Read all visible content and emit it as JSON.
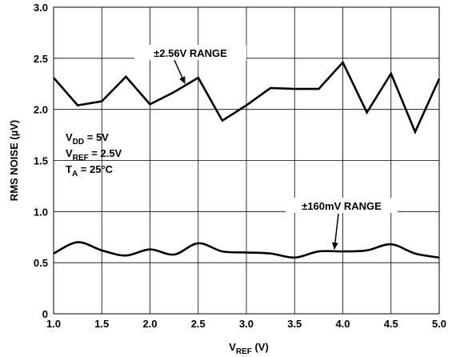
{
  "chart_data": {
    "type": "line",
    "xlabel": "V",
    "xlabel_sub": "REF",
    "xlabel_unit": " (V)",
    "ylabel": "RMS NOISE (µV)",
    "xlim": [
      1.0,
      5.0
    ],
    "ylim": [
      0,
      3.0
    ],
    "grid": true,
    "x_ticks": [
      "1.0",
      "1.5",
      "2.0",
      "2.5",
      "3.0",
      "3.5",
      "4.0",
      "4.5",
      "5.0"
    ],
    "y_ticks": [
      "0",
      "0.5",
      "1.0",
      "1.5",
      "2.0",
      "2.5",
      "3.0"
    ],
    "series": [
      {
        "name": "±2.56V RANGE",
        "smooth": false,
        "x": [
          1.0,
          1.25,
          1.5,
          1.75,
          2.0,
          2.25,
          2.5,
          2.75,
          3.0,
          3.25,
          3.5,
          3.75,
          4.0,
          4.25,
          4.5,
          4.75,
          5.0
        ],
        "y": [
          2.31,
          2.04,
          2.08,
          2.32,
          2.05,
          2.17,
          2.31,
          1.89,
          2.04,
          2.21,
          2.2,
          2.2,
          2.46,
          1.97,
          2.35,
          1.78,
          2.3
        ]
      },
      {
        "name": "±160mV RANGE",
        "smooth": true,
        "x": [
          1.0,
          1.25,
          1.5,
          1.75,
          2.0,
          2.25,
          2.5,
          2.75,
          3.0,
          3.25,
          3.5,
          3.75,
          4.0,
          4.25,
          4.5,
          4.75,
          5.0
        ],
        "y": [
          0.59,
          0.7,
          0.62,
          0.57,
          0.63,
          0.58,
          0.69,
          0.61,
          0.6,
          0.59,
          0.55,
          0.61,
          0.61,
          0.62,
          0.68,
          0.59,
          0.55
        ]
      }
    ],
    "conditions": [
      {
        "main": "V",
        "sub": "DD",
        "rest": " = 5V"
      },
      {
        "main": "V",
        "sub": "REF",
        "rest": " = 2.5V"
      },
      {
        "main": "T",
        "sub": "A",
        "rest": " = 25°C"
      }
    ],
    "annotations": [
      {
        "text": "±2.56V RANGE",
        "target_x": 2.38,
        "target_y": 2.21
      },
      {
        "text": "±160mV RANGE",
        "target_x": 3.95,
        "target_y": 0.63
      }
    ]
  }
}
